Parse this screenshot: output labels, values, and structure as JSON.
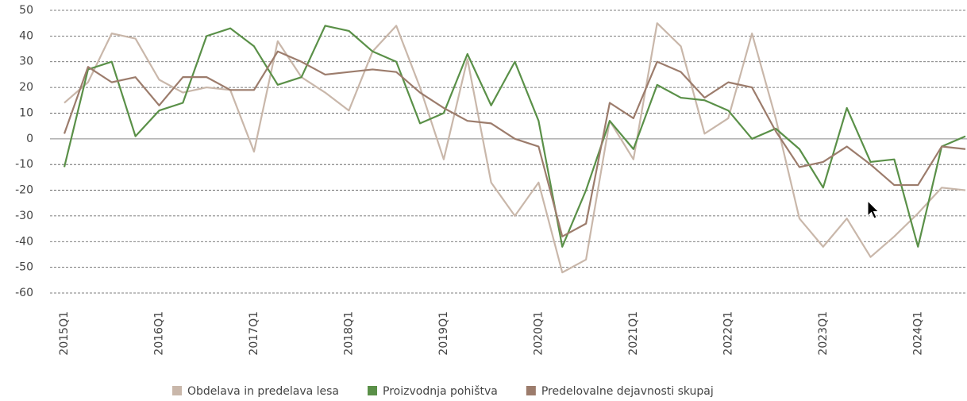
{
  "chart_data": {
    "type": "line",
    "categories": [
      "2015Q1",
      null,
      null,
      null,
      "2016Q1",
      null,
      null,
      null,
      "2017Q1",
      null,
      null,
      null,
      "2018Q1",
      null,
      null,
      null,
      "2019Q1",
      null,
      null,
      null,
      "2020Q1",
      null,
      null,
      null,
      "2021Q1",
      null,
      null,
      null,
      "2022Q1",
      null,
      null,
      null,
      "2023Q1",
      null,
      null,
      null,
      "2024Q1",
      null,
      null
    ],
    "series": [
      {
        "name": "Obdelava in predelava lesa",
        "color": "#c9b7aa",
        "values": [
          14,
          22,
          41,
          39,
          23,
          18,
          20,
          19,
          -5,
          38,
          24,
          18,
          11,
          34,
          44,
          20,
          -8,
          31,
          -17,
          -30,
          -17,
          -52,
          -47,
          7,
          -8,
          45,
          36,
          2,
          8,
          41,
          8,
          -31,
          -42,
          -31,
          -46,
          -38,
          -29,
          -19,
          -20
        ]
      },
      {
        "name": "Proizvodnja pohištva",
        "color": "#5a9048",
        "values": [
          -11,
          27,
          30,
          1,
          11,
          14,
          40,
          43,
          36,
          21,
          24,
          44,
          42,
          34,
          30,
          6,
          10,
          33,
          13,
          30,
          7,
          -42,
          -20,
          7,
          -4,
          21,
          16,
          15,
          11,
          0,
          4,
          -4,
          -19,
          12,
          -9,
          -8,
          -42,
          -3,
          1
        ]
      },
      {
        "name": "Predelovalne dejavnosti skupaj",
        "color": "#9c7c6c",
        "values": [
          2,
          28,
          22,
          24,
          13,
          24,
          24,
          19,
          19,
          34,
          30,
          25,
          26,
          27,
          26,
          18,
          12,
          7,
          6,
          0,
          -3,
          -38,
          -33,
          14,
          8,
          30,
          26,
          16,
          22,
          20,
          3,
          -11,
          -9,
          -3,
          -10,
          -18,
          -18,
          -3,
          -4
        ]
      }
    ],
    "ylim": [
      -60,
      50
    ],
    "yticks": [
      50,
      40,
      30,
      20,
      10,
      0,
      -10,
      -20,
      -30,
      -40,
      -50,
      -60
    ],
    "grid": true,
    "legend": "bottom"
  }
}
